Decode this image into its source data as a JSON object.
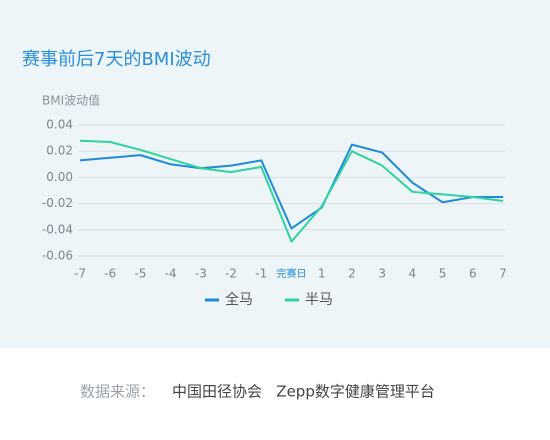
{
  "chart_data": {
    "type": "line",
    "title": "赛事前后7天的BMI波动",
    "y_label": "BMI波动值",
    "categories": [
      "-7",
      "-6",
      "-5",
      "-4",
      "-3",
      "-2",
      "-1",
      "完赛日",
      "1",
      "2",
      "3",
      "4",
      "5",
      "6",
      "7"
    ],
    "series": [
      {
        "name": "全马",
        "color": "#1f8ad9",
        "values": [
          0.013,
          0.015,
          0.017,
          0.01,
          0.007,
          0.009,
          0.013,
          -0.039,
          -0.023,
          0.025,
          0.019,
          -0.004,
          -0.019,
          -0.015,
          -0.015
        ]
      },
      {
        "name": "半马",
        "color": "#2fd39c",
        "values": [
          0.028,
          0.027,
          0.021,
          0.014,
          0.007,
          0.004,
          0.008,
          -0.049,
          -0.022,
          0.02,
          0.009,
          -0.011,
          -0.013,
          -0.015,
          -0.018
        ]
      }
    ],
    "ylim": [
      -0.06,
      0.04
    ],
    "yticks": [
      -0.06,
      -0.04,
      -0.02,
      {
        "value": 0,
        "label": "0.00"
      },
      0.02,
      0.04
    ],
    "grid": true,
    "legend": "bottom"
  },
  "footer": {
    "source_label": "数据来源：",
    "source_text": "中国田径协会   Zepp数字健康管理平台"
  }
}
